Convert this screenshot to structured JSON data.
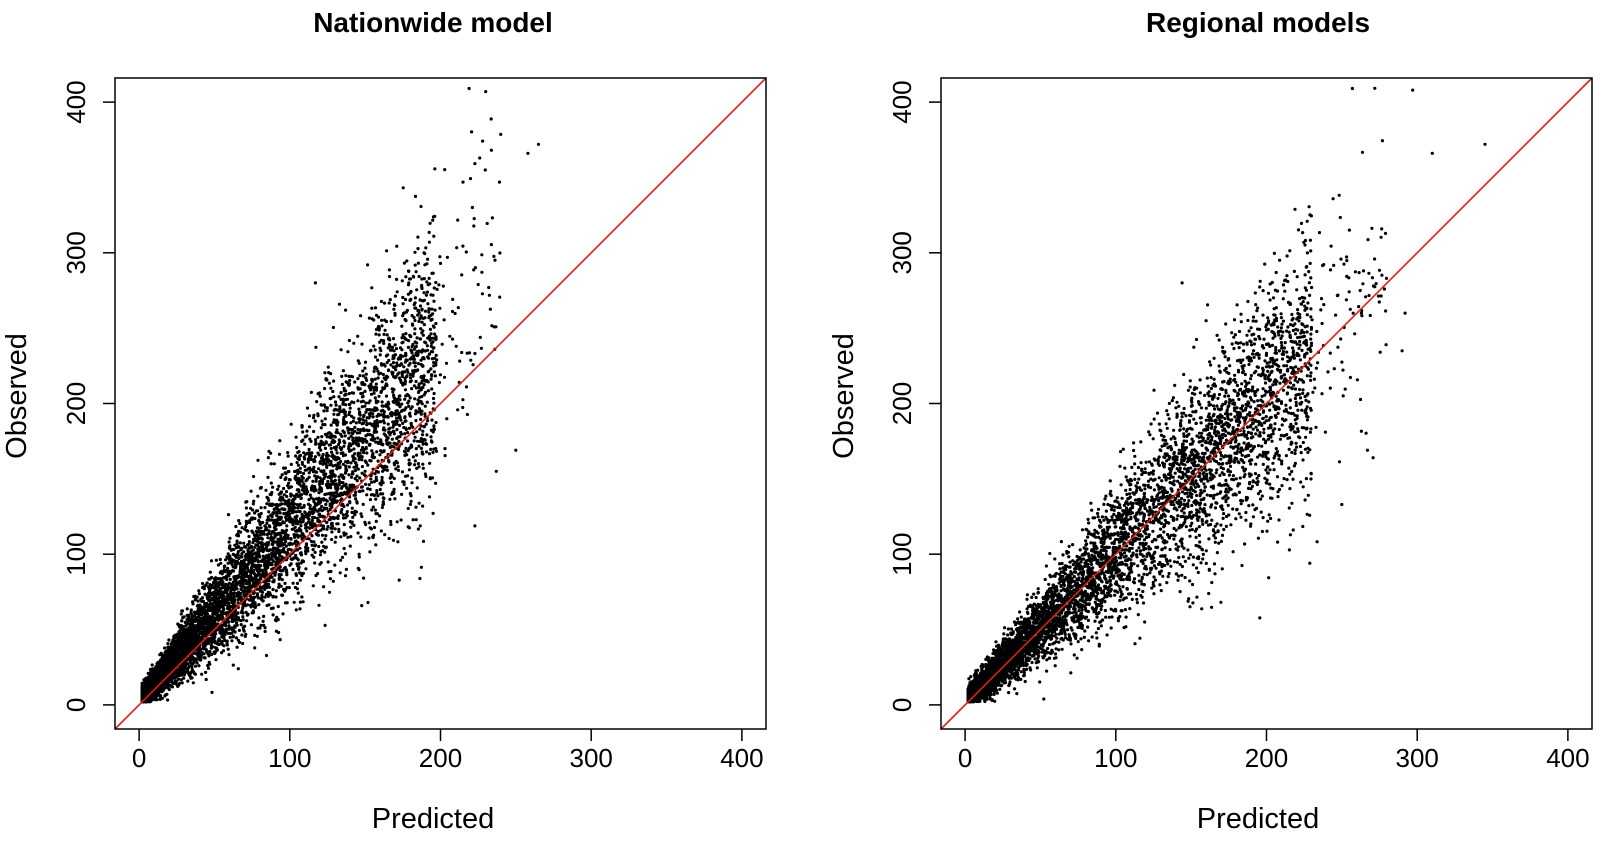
{
  "chart_data": [
    {
      "type": "scatter",
      "title": "Nationwide model",
      "xlabel": "Predicted",
      "ylabel": "Observed",
      "xlim": [
        -16,
        416
      ],
      "ylim": [
        -16,
        416
      ],
      "x_ticks": [
        0,
        100,
        200,
        300,
        400
      ],
      "y_ticks": [
        0,
        100,
        200,
        300,
        400
      ],
      "reference_line": {
        "slope": 1,
        "intercept": 0,
        "color": "#e41a1c"
      },
      "point_color": "#000000",
      "grid": false,
      "legend": "none",
      "bulk_cloud": {
        "n_points": 6500,
        "x_range": [
          2,
          240
        ],
        "y_vs_x_ratio": 1.18,
        "spread": 0.22
      },
      "notable_points": [
        {
          "x": 219,
          "y": 409
        },
        {
          "x": 230,
          "y": 407
        },
        {
          "x": 265,
          "y": 372
        },
        {
          "x": 258,
          "y": 366
        },
        {
          "x": 117,
          "y": 280
        },
        {
          "x": 137,
          "y": 262
        },
        {
          "x": 250,
          "y": 169
        },
        {
          "x": 237,
          "y": 155
        },
        {
          "x": 200,
          "y": 293
        },
        {
          "x": 225,
          "y": 279
        },
        {
          "x": 232,
          "y": 277
        },
        {
          "x": 236,
          "y": 236
        }
      ]
    },
    {
      "type": "scatter",
      "title": "Regional models",
      "xlabel": "Predicted",
      "ylabel": "Observed",
      "xlim": [
        -16,
        416
      ],
      "ylim": [
        -16,
        416
      ],
      "x_ticks": [
        0,
        100,
        200,
        300,
        400
      ],
      "y_ticks": [
        0,
        100,
        200,
        300,
        400
      ],
      "reference_line": {
        "slope": 1,
        "intercept": 0,
        "color": "#e41a1c"
      },
      "point_color": "#000000",
      "grid": false,
      "legend": "none",
      "bulk_cloud": {
        "n_points": 6500,
        "x_range": [
          2,
          280
        ],
        "y_vs_x_ratio": 1.0,
        "spread": 0.18
      },
      "notable_points": [
        {
          "x": 257,
          "y": 409
        },
        {
          "x": 297,
          "y": 408
        },
        {
          "x": 345,
          "y": 372
        },
        {
          "x": 310,
          "y": 366
        },
        {
          "x": 144,
          "y": 280
        },
        {
          "x": 229,
          "y": 293
        },
        {
          "x": 250,
          "y": 133
        },
        {
          "x": 267,
          "y": 169
        },
        {
          "x": 292,
          "y": 260
        },
        {
          "x": 271,
          "y": 278
        },
        {
          "x": 263,
          "y": 260
        },
        {
          "x": 290,
          "y": 235
        }
      ]
    }
  ]
}
